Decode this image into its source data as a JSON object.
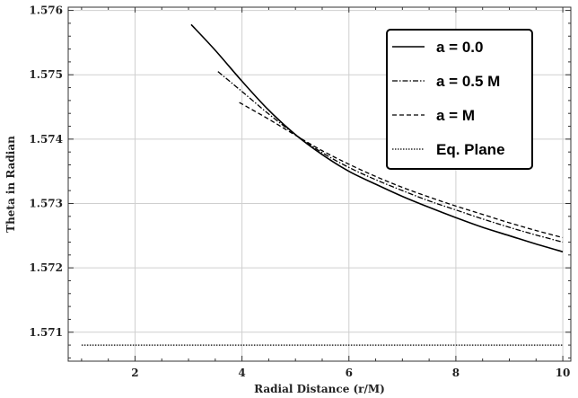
{
  "chart_data": {
    "type": "line",
    "title": "",
    "xlabel": "Radial Distance (r/M)",
    "ylabel": "Theta in Radian",
    "xlim": [
      0.75,
      10.15
    ],
    "ylim": [
      1.57055,
      1.57605
    ],
    "xticks": [
      2,
      4,
      6,
      8,
      10
    ],
    "xtick_labels": [
      "2",
      "4",
      "6",
      "8",
      "10"
    ],
    "yticks": [
      1.571,
      1.572,
      1.573,
      1.574,
      1.575,
      1.576
    ],
    "ytick_labels": [
      "1.571",
      "1.572",
      "1.573",
      "1.574",
      "1.575",
      "1.576"
    ],
    "grid": true,
    "legend_position": "top-right",
    "series": [
      {
        "name": "a = 0.0",
        "style": "solid",
        "x": [
          3.05,
          3.5,
          4.0,
          4.5,
          5.0,
          5.5,
          6.0,
          6.5,
          7.0,
          7.5,
          8.0,
          8.5,
          9.0,
          9.5,
          10.0
        ],
        "y": [
          1.57578,
          1.57538,
          1.5749,
          1.57445,
          1.57407,
          1.57376,
          1.5735,
          1.5733,
          1.57311,
          1.57294,
          1.57278,
          1.57263,
          1.5725,
          1.57237,
          1.57225
        ]
      },
      {
        "name": "a = 0.5 M",
        "style": "dashdot",
        "x": [
          3.55,
          4.0,
          4.5,
          5.0,
          5.5,
          6.0,
          6.5,
          7.0,
          7.5,
          8.0,
          8.5,
          9.0,
          9.5,
          10.0
        ],
        "y": [
          1.57505,
          1.57474,
          1.57439,
          1.57407,
          1.57379,
          1.57356,
          1.57337,
          1.5732,
          1.57304,
          1.5729,
          1.57276,
          1.57263,
          1.57251,
          1.5724
        ]
      },
      {
        "name": "a =  M",
        "style": "dashed",
        "x": [
          3.95,
          4.5,
          5.0,
          5.5,
          6.0,
          6.5,
          7.0,
          7.5,
          8.0,
          8.5,
          9.0,
          9.5,
          10.0
        ],
        "y": [
          1.57457,
          1.57431,
          1.57406,
          1.57382,
          1.57361,
          1.57342,
          1.57325,
          1.5731,
          1.57296,
          1.57283,
          1.5727,
          1.57258,
          1.57247
        ]
      },
      {
        "name": "Eq. Plane",
        "style": "dotted",
        "x": [
          1.0,
          10.0
        ],
        "y": [
          1.5708,
          1.5708
        ]
      }
    ]
  }
}
